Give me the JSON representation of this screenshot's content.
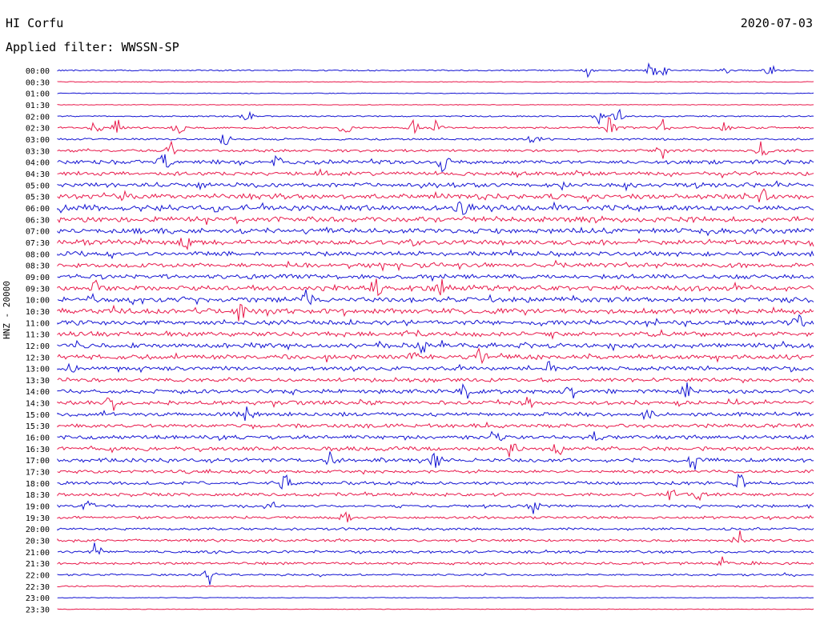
{
  "header": {
    "station": "HI Corfu",
    "date": "2020-07-03",
    "filter": "Applied filter: WWSSN-SP",
    "channel": "HNZ - 20000"
  },
  "colors": {
    "odd_rows": "#1414d2",
    "even_rows": "#e8194b",
    "text": "#000000"
  },
  "chart_data": {
    "type": "line",
    "title": "HI Corfu",
    "ylabel": "HNZ - 20000",
    "rows": [
      "00:00",
      "00:30",
      "01:00",
      "01:30",
      "02:00",
      "02:30",
      "03:00",
      "03:30",
      "04:00",
      "04:30",
      "05:00",
      "05:30",
      "06:00",
      "06:30",
      "07:00",
      "07:30",
      "08:00",
      "08:30",
      "09:00",
      "09:30",
      "10:00",
      "10:30",
      "11:00",
      "11:30",
      "12:00",
      "12:30",
      "13:00",
      "13:30",
      "14:00",
      "14:30",
      "15:00",
      "15:30",
      "16:00",
      "16:30",
      "17:00",
      "17:30",
      "18:00",
      "18:30",
      "19:00",
      "19:30",
      "20:00",
      "20:30",
      "21:00",
      "21:30",
      "22:00",
      "22:30",
      "23:00",
      "23:30"
    ],
    "amplitude": [
      0.1,
      0.0,
      0.0,
      0.0,
      0.1,
      0.2,
      0.2,
      0.3,
      0.5,
      0.5,
      0.6,
      0.7,
      0.7,
      0.7,
      0.7,
      0.7,
      0.6,
      0.6,
      0.6,
      0.7,
      0.7,
      0.7,
      0.6,
      0.6,
      0.6,
      0.6,
      0.5,
      0.5,
      0.5,
      0.5,
      0.5,
      0.5,
      0.5,
      0.5,
      0.5,
      0.4,
      0.4,
      0.4,
      0.3,
      0.3,
      0.3,
      0.3,
      0.3,
      0.3,
      0.2,
      0.1,
      0.0,
      0.0
    ],
    "events": [
      {
        "row": "00:00",
        "pos": [
          0.7,
          0.785,
          0.8,
          0.885,
          0.94
        ]
      },
      {
        "row": "02:00",
        "pos": [
          0.25,
          0.715,
          0.74
        ]
      },
      {
        "row": "02:30",
        "pos": [
          0.05,
          0.08,
          0.16,
          0.38,
          0.47,
          0.5,
          0.73,
          0.8,
          0.88
        ]
      },
      {
        "row": "03:00",
        "pos": [
          0.22,
          0.63
        ]
      },
      {
        "row": "03:30",
        "pos": [
          0.15,
          0.8,
          0.93
        ]
      },
      {
        "row": "04:00",
        "pos": [
          0.14,
          0.29,
          0.51
        ]
      },
      {
        "row": "05:30",
        "pos": [
          0.09,
          0.93
        ]
      },
      {
        "row": "06:00",
        "pos": [
          0.53,
          0.54
        ]
      },
      {
        "row": "07:30",
        "pos": [
          0.17
        ]
      },
      {
        "row": "09:30",
        "pos": [
          0.05,
          0.42,
          0.51
        ]
      },
      {
        "row": "10:00",
        "pos": [
          0.045,
          0.33
        ]
      },
      {
        "row": "10:30",
        "pos": [
          0.24
        ]
      },
      {
        "row": "11:00",
        "pos": [
          0.98
        ]
      },
      {
        "row": "12:00",
        "pos": [
          0.03,
          0.48
        ]
      },
      {
        "row": "12:30",
        "pos": [
          0.47,
          0.56
        ]
      },
      {
        "row": "13:00",
        "pos": [
          0.02,
          0.65
        ]
      },
      {
        "row": "14:00",
        "pos": [
          0.54,
          0.68,
          0.83
        ]
      },
      {
        "row": "14:30",
        "pos": [
          0.07,
          0.62
        ]
      },
      {
        "row": "15:00",
        "pos": [
          0.25,
          0.78
        ]
      },
      {
        "row": "16:00",
        "pos": [
          0.58,
          0.71
        ]
      },
      {
        "row": "16:30",
        "pos": [
          0.6,
          0.66
        ]
      },
      {
        "row": "17:00",
        "pos": [
          0.36,
          0.5,
          0.84
        ]
      },
      {
        "row": "18:00",
        "pos": [
          0.3,
          0.9
        ]
      },
      {
        "row": "18:30",
        "pos": [
          0.81,
          0.85
        ]
      },
      {
        "row": "19:00",
        "pos": [
          0.04,
          0.28,
          0.63
        ]
      },
      {
        "row": "19:30",
        "pos": [
          0.38
        ]
      },
      {
        "row": "20:30",
        "pos": [
          0.9
        ]
      },
      {
        "row": "21:00",
        "pos": [
          0.05
        ]
      },
      {
        "row": "21:30",
        "pos": [
          0.88
        ]
      },
      {
        "row": "22:00",
        "pos": [
          0.2
        ]
      }
    ]
  }
}
